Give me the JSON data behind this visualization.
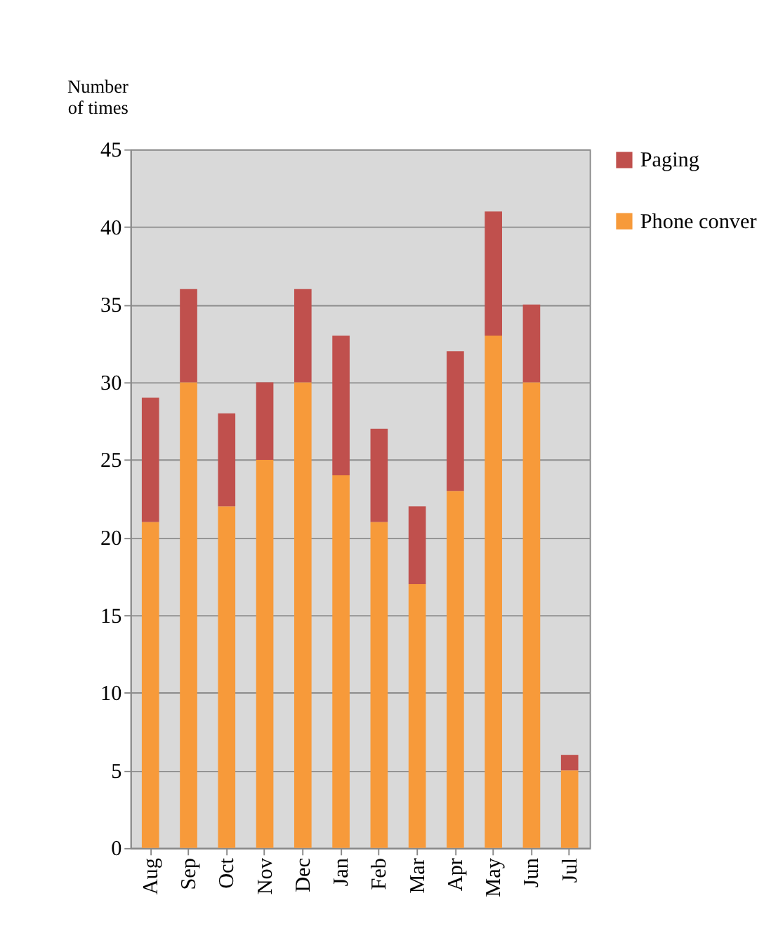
{
  "chart_data": {
    "type": "bar",
    "stacked": true,
    "ylabel": "Number of times",
    "categories": [
      "Aug",
      "Sep",
      "Oct",
      "Nov",
      "Dec",
      "Jan",
      "Feb",
      "Mar",
      "Apr",
      "May",
      "Jun",
      "Jul"
    ],
    "series": [
      {
        "name": "Phone conver",
        "color": "#f79a3a",
        "values": [
          21,
          30,
          22,
          25,
          30,
          24,
          21,
          17,
          23,
          33,
          30,
          5
        ]
      },
      {
        "name": "Paging",
        "color": "#c0504d",
        "values": [
          8,
          6,
          6,
          5,
          6,
          9,
          6,
          5,
          9,
          8,
          5,
          1
        ]
      }
    ],
    "ylim": [
      0,
      45
    ],
    "yticks": [
      0,
      5,
      10,
      15,
      20,
      25,
      30,
      35,
      40,
      45
    ],
    "grid": "y",
    "legend": "right"
  }
}
